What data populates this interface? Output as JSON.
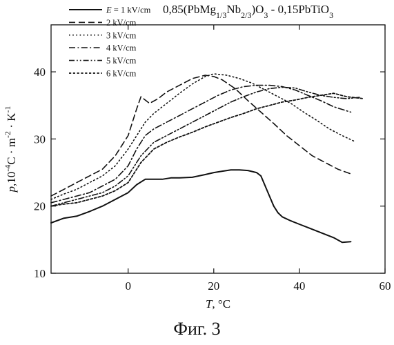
{
  "caption": "Фиг. 3",
  "chart_data": {
    "type": "line",
    "title": "0,85(PbMg1/3Nb2/3)O3 - 0,15PbTiO3",
    "title_parts": [
      {
        "t": "0,85(PbMg",
        "s": ""
      },
      {
        "t": "1/3",
        "s": "sub"
      },
      {
        "t": "Nb",
        "s": ""
      },
      {
        "t": "2/3",
        "s": "sub"
      },
      {
        "t": ")O",
        "s": ""
      },
      {
        "t": "3",
        "s": "sub"
      },
      {
        "t": " - 0,15PbTiO",
        "s": ""
      },
      {
        "t": "3",
        "s": "sub"
      }
    ],
    "xlabel_var": "T",
    "xlabel_unit": ", °C",
    "ylabel": "p,10-4C · m-2 · K-1",
    "ylabel_parts": [
      {
        "t": "p",
        "s": "it"
      },
      {
        "t": ",10",
        "s": ""
      },
      {
        "t": "-4",
        "s": "sup"
      },
      {
        "t": "C · m",
        "s": ""
      },
      {
        "t": "-2",
        "s": "sup"
      },
      {
        "t": " · K",
        "s": ""
      },
      {
        "t": "-1",
        "s": "sup"
      }
    ],
    "xlim": [
      -18,
      60
    ],
    "ylim": [
      10,
      47
    ],
    "x_ticks": [
      0,
      20,
      40,
      60
    ],
    "y_ticks": [
      10,
      20,
      30,
      40
    ],
    "x_tick_labels": [
      "0",
      "20",
      "40",
      "60"
    ],
    "y_tick_labels": [
      "10",
      "20",
      "30",
      "40"
    ],
    "grid": false,
    "legend_position": "top-left",
    "series": [
      {
        "name": "E = 1 kV/cm",
        "style": "solid",
        "x": [
          -18,
          -15,
          -12,
          -9,
          -6,
          -3,
          0,
          2,
          4,
          6,
          8,
          10,
          12,
          15,
          18,
          20,
          22,
          24,
          26,
          28,
          30,
          31,
          32,
          33,
          34,
          35,
          36,
          38,
          40,
          42,
          44,
          46,
          48,
          50,
          52
        ],
        "y": [
          17.5,
          18.2,
          18.5,
          19.2,
          20.0,
          21.0,
          22.0,
          23.2,
          24.0,
          24.0,
          24.0,
          24.2,
          24.2,
          24.3,
          24.7,
          25.0,
          25.2,
          25.4,
          25.4,
          25.3,
          25.0,
          24.5,
          23.0,
          21.5,
          20.0,
          19.0,
          18.4,
          17.8,
          17.3,
          16.8,
          16.3,
          15.8,
          15.3,
          14.6,
          14.7
        ]
      },
      {
        "name": "2 kV/cm",
        "style": "dashed",
        "x": [
          -18,
          -15,
          -12,
          -9,
          -6,
          -3,
          0,
          1,
          2,
          3,
          4,
          5,
          7,
          9,
          12,
          15,
          18,
          20,
          22,
          25,
          28,
          31,
          34,
          37,
          40,
          43,
          46,
          49,
          52
        ],
        "y": [
          21.5,
          22.5,
          23.5,
          24.5,
          25.5,
          27.5,
          30.5,
          32.5,
          34.5,
          36.3,
          35.8,
          35.3,
          36.0,
          37.0,
          38.0,
          39.0,
          39.5,
          39.3,
          38.8,
          37.5,
          35.7,
          34.0,
          32.3,
          30.5,
          29.0,
          27.5,
          26.5,
          25.5,
          24.8
        ]
      },
      {
        "name": "3 kV/cm",
        "style": "dotted",
        "x": [
          -18,
          -15,
          -12,
          -9,
          -6,
          -3,
          0,
          2,
          4,
          6,
          8,
          10,
          12,
          15,
          18,
          20,
          23,
          26,
          29,
          32,
          35,
          38,
          41,
          44,
          47,
          50,
          53
        ],
        "y": [
          21.0,
          21.8,
          22.5,
          23.5,
          24.5,
          26.0,
          28.5,
          30.5,
          32.5,
          33.8,
          34.8,
          35.8,
          36.8,
          38.2,
          39.3,
          39.7,
          39.5,
          39.0,
          38.3,
          37.3,
          36.3,
          35.3,
          34.0,
          32.8,
          31.5,
          30.5,
          29.6
        ]
      },
      {
        "name": "4 kV/cm",
        "style": "dashdot",
        "x": [
          -18,
          -15,
          -12,
          -9,
          -6,
          -3,
          0,
          2,
          4,
          6,
          9,
          12,
          15,
          18,
          21,
          24,
          27,
          30,
          33,
          36,
          39,
          42,
          45,
          48,
          52
        ],
        "y": [
          20.5,
          21.0,
          21.5,
          22.0,
          23.0,
          24.0,
          26.0,
          28.5,
          30.5,
          31.5,
          32.5,
          33.5,
          34.5,
          35.5,
          36.5,
          37.3,
          37.8,
          38.0,
          38.0,
          37.8,
          37.3,
          36.5,
          35.7,
          34.8,
          34.0
        ]
      },
      {
        "name": "5 kV/cm",
        "style": "dashdotdot",
        "x": [
          -18,
          -15,
          -12,
          -9,
          -6,
          -3,
          0,
          3,
          6,
          9,
          12,
          15,
          18,
          21,
          24,
          27,
          30,
          33,
          36,
          39,
          42,
          45,
          48,
          51,
          54
        ],
        "y": [
          20.0,
          20.5,
          21.0,
          21.5,
          22.0,
          23.0,
          24.5,
          27.5,
          29.5,
          30.5,
          31.5,
          32.5,
          33.5,
          34.5,
          35.5,
          36.3,
          37.0,
          37.5,
          37.7,
          37.6,
          37.0,
          36.5,
          36.2,
          36.0,
          36.2
        ]
      },
      {
        "name": "6 kV/cm",
        "style": "shortdash",
        "x": [
          -18,
          -15,
          -12,
          -9,
          -6,
          -3,
          0,
          3,
          6,
          9,
          12,
          15,
          18,
          21,
          24,
          27,
          30,
          33,
          36,
          39,
          42,
          45,
          48,
          51,
          55
        ],
        "y": [
          20.0,
          20.3,
          20.5,
          21.0,
          21.5,
          22.3,
          23.5,
          26.5,
          28.5,
          29.5,
          30.3,
          31.0,
          31.8,
          32.5,
          33.2,
          33.8,
          34.5,
          35.0,
          35.5,
          35.8,
          36.2,
          36.5,
          36.8,
          36.3,
          36.0
        ]
      }
    ]
  }
}
